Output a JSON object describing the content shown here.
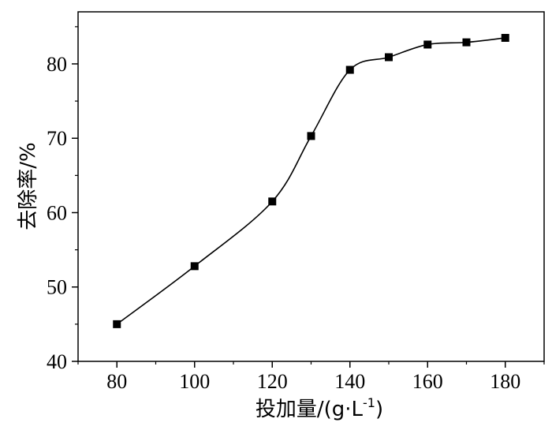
{
  "chart_data": {
    "type": "line",
    "xlabel_main": "投加量/(g·L",
    "xlabel_sup": "-1",
    "xlabel_close": ")",
    "ylabel": "去除率/%",
    "xlim": [
      70,
      190
    ],
    "ylim": [
      40,
      87
    ],
    "xticks": [
      80,
      100,
      120,
      140,
      160,
      180
    ],
    "yticks": [
      40,
      50,
      60,
      70,
      80
    ],
    "grid": false,
    "legend": "none",
    "marker": "square",
    "color": "#000000",
    "series": [
      {
        "x": [
          80,
          100,
          120,
          130,
          140,
          150,
          160,
          170,
          180
        ],
        "y": [
          45.0,
          52.8,
          61.5,
          70.3,
          79.2,
          80.9,
          82.6,
          82.9,
          83.5
        ]
      }
    ]
  }
}
